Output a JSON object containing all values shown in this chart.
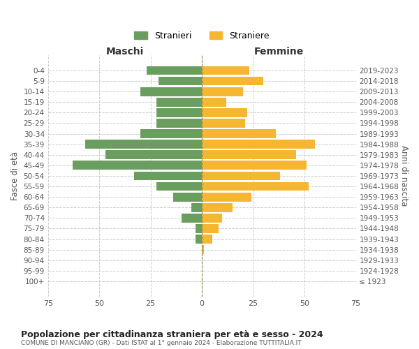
{
  "age_groups": [
    "100+",
    "95-99",
    "90-94",
    "85-89",
    "80-84",
    "75-79",
    "70-74",
    "65-69",
    "60-64",
    "55-59",
    "50-54",
    "45-49",
    "40-44",
    "35-39",
    "30-34",
    "25-29",
    "20-24",
    "15-19",
    "10-14",
    "5-9",
    "0-4"
  ],
  "birth_years": [
    "≤ 1923",
    "1924-1928",
    "1929-1933",
    "1934-1938",
    "1939-1943",
    "1944-1948",
    "1949-1953",
    "1954-1958",
    "1959-1963",
    "1964-1968",
    "1969-1973",
    "1974-1978",
    "1979-1983",
    "1984-1988",
    "1989-1993",
    "1994-1998",
    "1999-2003",
    "2004-2008",
    "2009-2013",
    "2014-2018",
    "2019-2023"
  ],
  "maschi": [
    0,
    0,
    0,
    0,
    3,
    3,
    10,
    5,
    14,
    22,
    33,
    63,
    47,
    57,
    30,
    22,
    22,
    22,
    30,
    21,
    27
  ],
  "femmine": [
    0,
    0,
    0,
    1,
    5,
    8,
    10,
    15,
    24,
    52,
    38,
    51,
    46,
    55,
    36,
    21,
    22,
    12,
    20,
    30,
    23
  ],
  "male_color": "#6a9e5e",
  "female_color": "#f5b731",
  "bar_height": 0.85,
  "xlim": 75,
  "title": "Popolazione per cittadinanza straniera per età e sesso - 2024",
  "subtitle": "COMUNE DI MANCIANO (GR) - Dati ISTAT al 1° gennaio 2024 - Elaborazione TUTTITALIA.IT",
  "xlabel_left": "Maschi",
  "xlabel_right": "Femmine",
  "ylabel_left": "Fasce di età",
  "ylabel_right": "Anni di nascita",
  "legend_stranieri": "Stranieri",
  "legend_straniere": "Straniere",
  "background_color": "#ffffff",
  "grid_color": "#cccccc"
}
